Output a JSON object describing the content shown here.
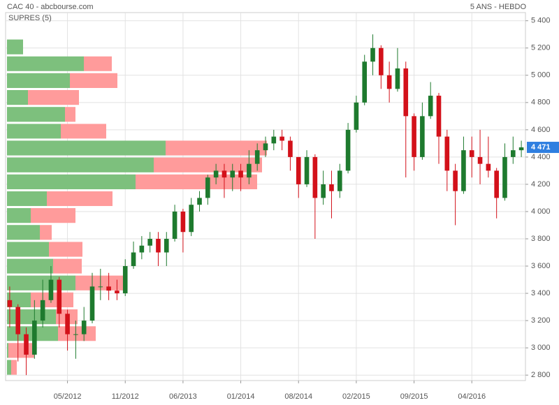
{
  "chart_data": {
    "type": "candlestick",
    "title": "CAC 40 - abcbourse.com",
    "subtitle": "5 ANS - HEBDO",
    "categories": [
      null,
      null,
      null,
      null,
      null,
      null,
      null,
      "05/2012",
      null,
      null,
      null,
      null,
      null,
      null,
      "11/2012",
      null,
      null,
      null,
      null,
      null,
      null,
      "06/2013",
      null,
      null,
      null,
      null,
      null,
      null,
      "01/2014",
      null,
      null,
      null,
      null,
      null,
      null,
      "08/2014",
      null,
      null,
      null,
      null,
      null,
      null,
      "02/2015",
      null,
      null,
      null,
      null,
      null,
      null,
      "09/2015",
      null,
      null,
      null,
      null,
      null,
      null,
      "04/2016",
      null,
      null,
      null,
      null,
      null,
      null
    ],
    "open": [
      3350,
      3300,
      3100,
      2950,
      3200,
      3350,
      3500,
      3250,
      3100,
      3100,
      3200,
      3450,
      3450,
      3420,
      3400,
      3600,
      3700,
      3750,
      3800,
      3700,
      3800,
      4000,
      3850,
      4050,
      4100,
      4250,
      4300,
      4250,
      4300,
      4250,
      4350,
      4450,
      4500,
      4550,
      4520,
      4400,
      4200,
      4400,
      4100,
      4200,
      4150,
      4300,
      4600,
      4800,
      5100,
      5200,
      5000,
      4900,
      5050,
      4700,
      4400,
      4700,
      4850,
      4550,
      4300,
      4150,
      4450,
      4400,
      4350,
      4300,
      4100,
      4400,
      4450
    ],
    "high": [
      3450,
      3320,
      3150,
      3350,
      3500,
      3600,
      3520,
      3280,
      3200,
      3300,
      3550,
      3580,
      3550,
      3500,
      3650,
      3780,
      3820,
      3850,
      3850,
      3850,
      4050,
      4020,
      4100,
      4150,
      4270,
      4350,
      4350,
      4350,
      4350,
      4450,
      4500,
      4550,
      4600,
      4600,
      4550,
      4400,
      4450,
      4420,
      4300,
      4300,
      4350,
      4650,
      4850,
      5150,
      5300,
      5220,
      5100,
      5200,
      5100,
      4720,
      4800,
      4950,
      4870,
      4600,
      4350,
      4550,
      4550,
      4600,
      4550,
      4320,
      4500,
      4550,
      4520
    ],
    "low": [
      3150,
      2900,
      2800,
      2920,
      3150,
      3330,
      3150,
      2980,
      2920,
      3050,
      3180,
      3350,
      3350,
      3350,
      3380,
      3580,
      3650,
      3700,
      3600,
      3600,
      3780,
      3700,
      3820,
      4000,
      4050,
      4200,
      4100,
      4150,
      4150,
      4200,
      4300,
      4400,
      4450,
      4450,
      4300,
      4100,
      4180,
      3800,
      4050,
      3950,
      4100,
      4280,
      4580,
      4780,
      5000,
      4900,
      4800,
      4880,
      4250,
      4300,
      4380,
      4680,
      4350,
      4150,
      3900,
      4130,
      4250,
      4200,
      4250,
      3950,
      4080,
      4350,
      4400
    ],
    "close": [
      3300,
      3100,
      2950,
      3200,
      3350,
      3500,
      3250,
      3100,
      3100,
      3200,
      3450,
      3450,
      3420,
      3400,
      3600,
      3700,
      3750,
      3800,
      3700,
      3800,
      4000,
      3850,
      4050,
      4100,
      4250,
      4300,
      4250,
      4300,
      4250,
      4350,
      4450,
      4500,
      4550,
      4520,
      4400,
      4200,
      4400,
      4100,
      4200,
      4150,
      4300,
      4600,
      4800,
      5100,
      5200,
      5000,
      4900,
      5050,
      4700,
      4400,
      4700,
      4850,
      4550,
      4300,
      4150,
      4450,
      4400,
      4350,
      4300,
      4100,
      4400,
      4450,
      4471
    ],
    "up_color": "#1e7a2e",
    "down_color": "#d3111a",
    "ylim": [
      2760,
      5460
    ],
    "yticks": [
      {
        "value": 2800,
        "label": "2 800"
      },
      {
        "value": 3000,
        "label": "3 000"
      },
      {
        "value": 3200,
        "label": "3 200"
      },
      {
        "value": 3400,
        "label": "3 400"
      },
      {
        "value": 3600,
        "label": "3 600"
      },
      {
        "value": 3800,
        "label": "3 800"
      },
      {
        "value": 4000,
        "label": "4 000"
      },
      {
        "value": 4200,
        "label": "4 200"
      },
      {
        "value": 4400,
        "label": "4 400"
      },
      {
        "value": 4600,
        "label": "4 600"
      },
      {
        "value": 4800,
        "label": "4 800"
      },
      {
        "value": 5000,
        "label": "5 000"
      },
      {
        "value": 5200,
        "label": "5 200"
      },
      {
        "value": 5400,
        "label": "5 400"
      }
    ],
    "grid": true,
    "last_value": {
      "value": 4471,
      "label": "4 471"
    },
    "last_color": "#2f7fe0",
    "profile": {
      "label": "SUPRES (5)",
      "label_color": "#5cb85c",
      "bins": [
        2795,
        2919,
        3043,
        3166,
        3290,
        3414,
        3538,
        3661,
        3785,
        3909,
        4033,
        4156,
        4280,
        4404,
        4528,
        4651,
        4775,
        4899,
        5023,
        5146,
        5270
      ],
      "green": {
        "color": "#7dc07d",
        "values": [
          6,
          2,
          73,
          70,
          34,
          98,
          66,
          60,
          47,
          34,
          57,
          184,
          210,
          227,
          77,
          83,
          30,
          90,
          110,
          23
        ]
      },
      "red": {
        "color": "#ff9b9b",
        "values": [
          8,
          37,
          54,
          31,
          61,
          70,
          41,
          48,
          17,
          64,
          94,
          174,
          155,
          145,
          65,
          15,
          73,
          68,
          40,
          0
        ]
      }
    }
  }
}
